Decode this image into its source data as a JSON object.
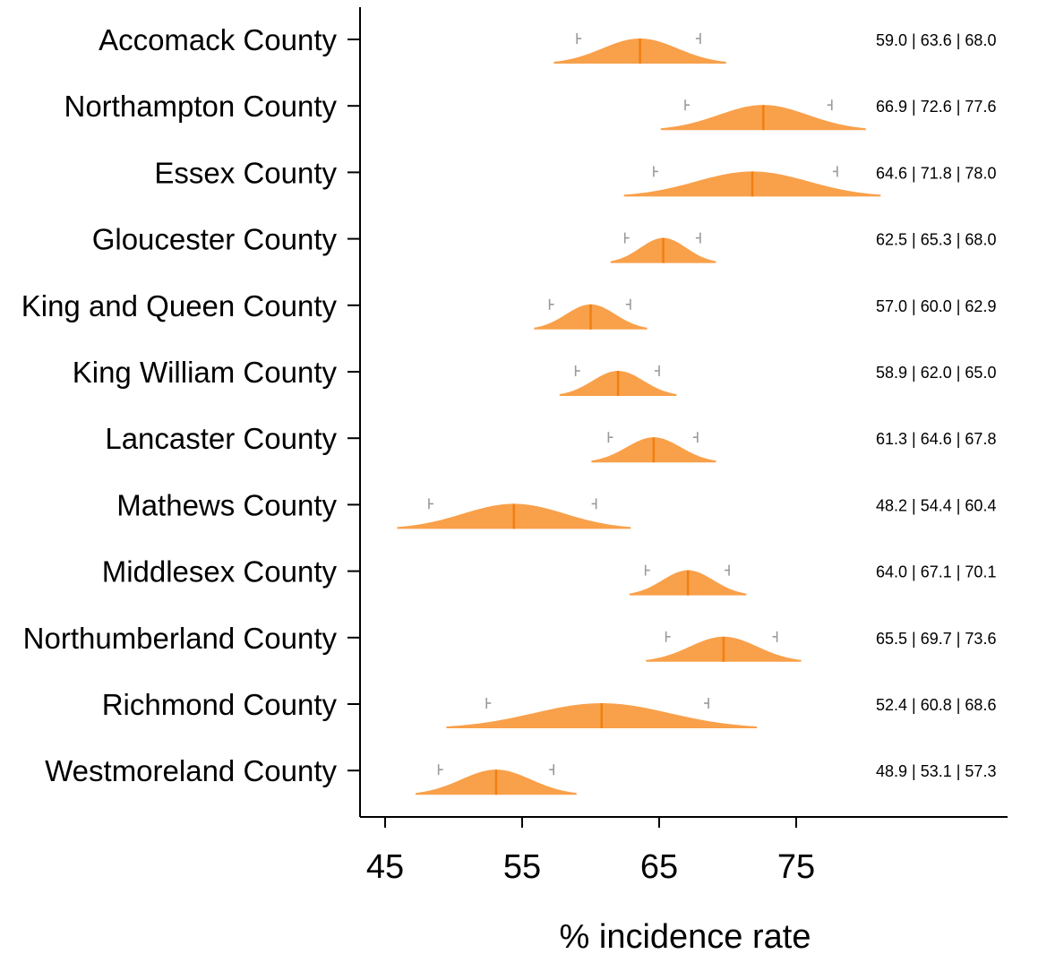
{
  "chart_data": {
    "type": "distribution-interval",
    "xlabel": "% incidence rate",
    "xticks": [
      45,
      55,
      65,
      75
    ],
    "xlim": [
      43.2,
      90.2
    ],
    "colors": {
      "fill": "#F9A04A",
      "median_line": "#F07F12",
      "whisker": "#9a9a9a",
      "axis": "#000000"
    },
    "categories": [
      "Accomack County",
      "Northampton County",
      "Essex County",
      "Gloucester County",
      "King and Queen County",
      "King William County",
      "Lancaster County",
      "Mathews County",
      "Middlesex County",
      "Northumberland County",
      "Richmond County",
      "Westmoreland County"
    ],
    "lower": [
      59.0,
      66.9,
      64.6,
      62.5,
      57.0,
      58.9,
      61.3,
      48.2,
      64.0,
      65.5,
      52.4,
      48.9
    ],
    "median": [
      63.6,
      72.6,
      71.8,
      65.3,
      60.0,
      62.0,
      64.6,
      54.4,
      67.1,
      69.7,
      60.8,
      53.1
    ],
    "upper": [
      68.0,
      77.6,
      78.0,
      68.0,
      62.9,
      65.0,
      67.8,
      60.4,
      70.1,
      73.6,
      68.6,
      57.3
    ],
    "value_labels": [
      "59.0 | 63.6 | 68.0",
      "66.9 | 72.6 | 77.6",
      "64.6 | 71.8 | 78.0",
      "62.5 | 65.3 | 68.0",
      "57.0 | 60.0 | 62.9",
      "58.9 | 62.0 | 65.0",
      "61.3 | 64.6 | 67.8",
      "48.2 | 54.4 | 60.4",
      "64.0 | 67.1 | 70.1",
      "65.5 | 69.7 | 73.6",
      "52.4 | 60.8 | 68.6",
      "48.9 | 53.1 | 57.3"
    ]
  }
}
